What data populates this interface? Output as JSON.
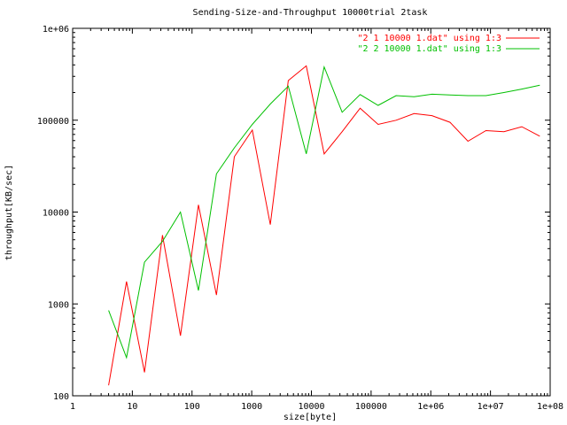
{
  "chart_data": {
    "type": "line",
    "title": "Sending-Size-and-Throughput 10000trial 2task",
    "xlabel": "size[byte]",
    "ylabel": "throughput[KB/sec]",
    "x_scale": "log",
    "y_scale": "log",
    "xlim": [
      1,
      100000000
    ],
    "ylim": [
      100,
      1000000
    ],
    "x_ticks": [
      {
        "v": 1,
        "label": "1"
      },
      {
        "v": 10,
        "label": "10"
      },
      {
        "v": 100,
        "label": "100"
      },
      {
        "v": 1000,
        "label": "1000"
      },
      {
        "v": 10000,
        "label": "10000"
      },
      {
        "v": 100000,
        "label": "100000"
      },
      {
        "v": 1000000,
        "label": "1e+06"
      },
      {
        "v": 10000000,
        "label": "1e+07"
      },
      {
        "v": 100000000,
        "label": "1e+08"
      }
    ],
    "y_ticks": [
      {
        "v": 100,
        "label": "100"
      },
      {
        "v": 1000,
        "label": "1000"
      },
      {
        "v": 10000,
        "label": "10000"
      },
      {
        "v": 100000,
        "label": "100000"
      },
      {
        "v": 1000000,
        "label": "1e+06"
      }
    ],
    "grid": false,
    "legend_position": "top-right",
    "series": [
      {
        "name": "\"2 1 10000 1.dat\" using 1:3",
        "color": "#ff0000",
        "points": [
          [
            4,
            130
          ],
          [
            8,
            1750
          ],
          [
            16,
            180
          ],
          [
            32,
            5600
          ],
          [
            64,
            450
          ],
          [
            128,
            12000
          ],
          [
            256,
            1250
          ],
          [
            512,
            40000
          ],
          [
            1024,
            78000
          ],
          [
            2048,
            7300
          ],
          [
            4096,
            270000
          ],
          [
            8192,
            390000
          ],
          [
            16384,
            43000
          ],
          [
            32768,
            75000
          ],
          [
            65536,
            135000
          ],
          [
            131072,
            90000
          ],
          [
            262144,
            100000
          ],
          [
            524288,
            118000
          ],
          [
            1048576,
            112000
          ],
          [
            2097152,
            95000
          ],
          [
            4194304,
            59000
          ],
          [
            8388608,
            77000
          ],
          [
            16777216,
            75000
          ],
          [
            33554432,
            85000
          ],
          [
            67108864,
            67000
          ]
        ]
      },
      {
        "name": "\"2 2 10000 1.dat\" using 1:3",
        "color": "#00c000",
        "points": [
          [
            4,
            850
          ],
          [
            8,
            260
          ],
          [
            16,
            2850
          ],
          [
            32,
            4800
          ],
          [
            64,
            10000
          ],
          [
            128,
            1400
          ],
          [
            256,
            26000
          ],
          [
            512,
            50000
          ],
          [
            1024,
            90000
          ],
          [
            2048,
            150000
          ],
          [
            4096,
            235000
          ],
          [
            8192,
            43000
          ],
          [
            16384,
            380000
          ],
          [
            32768,
            122000
          ],
          [
            65536,
            190000
          ],
          [
            131072,
            145000
          ],
          [
            262144,
            185000
          ],
          [
            524288,
            180000
          ],
          [
            1048576,
            192000
          ],
          [
            2097152,
            188000
          ],
          [
            4194304,
            185000
          ],
          [
            8388608,
            185000
          ],
          [
            16777216,
            200000
          ],
          [
            33554432,
            218000
          ],
          [
            67108864,
            240000
          ]
        ]
      }
    ]
  }
}
